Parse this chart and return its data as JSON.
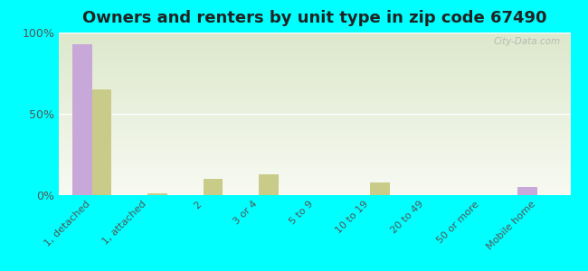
{
  "title": "Owners and renters by unit type in zip code 67490",
  "categories": [
    "1, detached",
    "1, attached",
    "2",
    "3 or 4",
    "5 to 9",
    "10 to 19",
    "20 to 49",
    "50 or more",
    "Mobile home"
  ],
  "owner_values": [
    93,
    0,
    0,
    0,
    0,
    0,
    0,
    0,
    5
  ],
  "renter_values": [
    65,
    1,
    10,
    13,
    0,
    8,
    0,
    0,
    0
  ],
  "owner_color": "#c8a8d8",
  "renter_color": "#c8cc88",
  "background_color": "#00ffff",
  "plot_bg_top": "#dde8cc",
  "plot_bg_bottom": "#f8faf2",
  "title_fontsize": 13,
  "watermark": "City-Data.com"
}
